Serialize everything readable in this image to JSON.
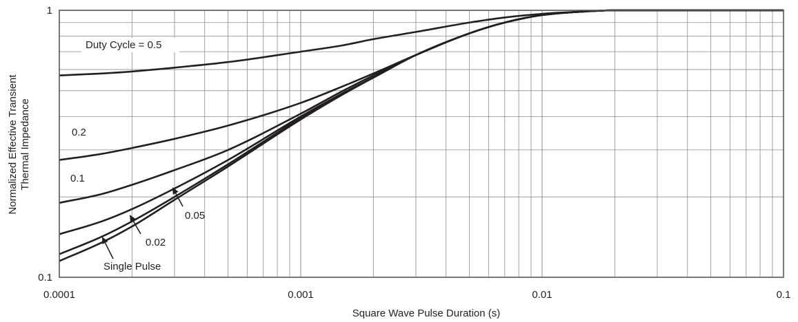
{
  "chart_data": {
    "type": "line",
    "title": "",
    "xlabel": "Square Wave Pulse Duration (s)",
    "ylabel": [
      "Normalized Effective Transient",
      "Thermal Impedance"
    ],
    "x_scale": "log",
    "y_scale": "log",
    "xlim": [
      0.0001,
      0.1
    ],
    "ylim": [
      0.1,
      1
    ],
    "grid": true,
    "x_ticks": [
      {
        "value": 0.0001,
        "label": "0.0001"
      },
      {
        "value": 0.001,
        "label": "0.001"
      },
      {
        "value": 0.01,
        "label": "0.01"
      },
      {
        "value": 0.1,
        "label": "0.1"
      }
    ],
    "y_ticks": [
      {
        "value": 0.1,
        "label": "0.1"
      },
      {
        "value": 1,
        "label": "1"
      }
    ],
    "series": [
      {
        "name": "Duty Cycle = 0.5",
        "x": [
          0.0001,
          0.00015,
          0.0002,
          0.0003,
          0.0005,
          0.001,
          0.0015,
          0.002,
          0.003,
          0.005,
          0.007,
          0.01,
          0.015,
          0.02,
          0.05,
          0.1
        ],
        "y": [
          0.57,
          0.58,
          0.59,
          0.61,
          0.64,
          0.7,
          0.74,
          0.78,
          0.83,
          0.9,
          0.94,
          0.97,
          0.99,
          1.0,
          1.0,
          1.0
        ]
      },
      {
        "name": "0.2",
        "x": [
          0.0001,
          0.00015,
          0.0002,
          0.0003,
          0.0005,
          0.001,
          0.0015,
          0.002,
          0.003,
          0.005,
          0.007,
          0.01,
          0.015,
          0.02,
          0.05,
          0.1
        ],
        "y": [
          0.275,
          0.29,
          0.305,
          0.33,
          0.37,
          0.45,
          0.52,
          0.58,
          0.68,
          0.82,
          0.9,
          0.96,
          0.99,
          1.0,
          1.0,
          1.0
        ]
      },
      {
        "name": "0.1",
        "x": [
          0.0001,
          0.00015,
          0.0002,
          0.0003,
          0.0005,
          0.001,
          0.0015,
          0.002,
          0.003,
          0.005,
          0.007,
          0.01,
          0.015,
          0.02,
          0.05,
          0.1
        ],
        "y": [
          0.19,
          0.205,
          0.222,
          0.252,
          0.3,
          0.41,
          0.5,
          0.57,
          0.68,
          0.82,
          0.9,
          0.96,
          0.99,
          1.0,
          1.0,
          1.0
        ]
      },
      {
        "name": "0.05",
        "x": [
          0.0001,
          0.00015,
          0.0002,
          0.0003,
          0.0005,
          0.001,
          0.0015,
          0.002,
          0.003,
          0.005,
          0.007,
          0.01,
          0.015,
          0.02,
          0.05,
          0.1
        ],
        "y": [
          0.145,
          0.162,
          0.18,
          0.215,
          0.275,
          0.4,
          0.49,
          0.56,
          0.68,
          0.82,
          0.9,
          0.96,
          0.99,
          1.0,
          1.0,
          1.0
        ]
      },
      {
        "name": "0.02",
        "x": [
          0.0001,
          0.00015,
          0.0002,
          0.0003,
          0.0005,
          0.001,
          0.0015,
          0.002,
          0.003,
          0.005,
          0.007,
          0.01,
          0.015,
          0.02,
          0.05,
          0.1
        ],
        "y": [
          0.122,
          0.142,
          0.162,
          0.2,
          0.265,
          0.395,
          0.49,
          0.56,
          0.68,
          0.82,
          0.9,
          0.96,
          0.99,
          1.0,
          1.0,
          1.0
        ]
      },
      {
        "name": "Single Pulse",
        "x": [
          0.0001,
          0.00015,
          0.0002,
          0.0003,
          0.0005,
          0.001,
          0.0015,
          0.002,
          0.003,
          0.005,
          0.007,
          0.01,
          0.015,
          0.02,
          0.05,
          0.1
        ],
        "y": [
          0.115,
          0.135,
          0.155,
          0.195,
          0.26,
          0.39,
          0.485,
          0.56,
          0.68,
          0.82,
          0.9,
          0.96,
          0.99,
          1.0,
          1.0,
          1.0
        ]
      }
    ],
    "annotations": [
      {
        "text": "Duty Cycle = 0.5",
        "series": "Duty Cycle = 0.5"
      },
      {
        "text": "0.2",
        "series": "0.2"
      },
      {
        "text": "0.1",
        "series": "0.1"
      },
      {
        "text": "0.05",
        "series": "0.05",
        "arrow": true
      },
      {
        "text": "0.02",
        "series": "0.02",
        "arrow": true
      },
      {
        "text": "Single Pulse",
        "series": "Single Pulse",
        "arrow": true
      }
    ],
    "colors": {
      "line": "#231f20",
      "grid": "#8a8a8a",
      "frame": "#555555"
    }
  }
}
